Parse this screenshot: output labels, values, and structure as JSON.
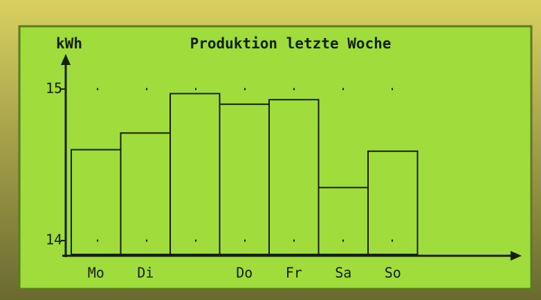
{
  "chart_data": {
    "type": "bar",
    "title": "Produktion letzte Woche",
    "y_label": "kWh",
    "categories": [
      "Mo",
      "Di",
      null,
      "Do",
      "Fr",
      "Sa",
      "So"
    ],
    "values": [
      14.6,
      14.71,
      14.97,
      14.9,
      14.93,
      14.35,
      14.59
    ],
    "color": "#14200a",
    "ylim": [
      13.9,
      15.2
    ],
    "yticks": [
      14,
      15
    ],
    "grid": true
  }
}
